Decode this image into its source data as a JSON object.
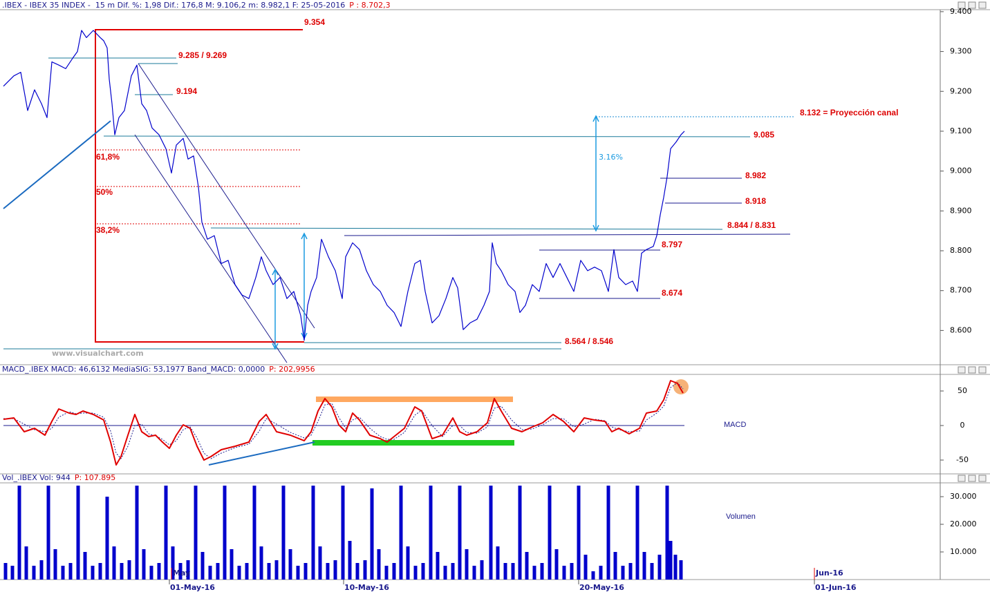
{
  "chart_data": [
    {
      "type": "line",
      "title": ".IBEX - IBEX 35 INDEX -  15 m Dif. %: 1,98 Dif.: 176,8 M: 9.106,2 m: 8.982,1 F: 25-05-2016",
      "title_value": "P : 8.702,3",
      "color": "#0000cc",
      "xlim": [
        0,
        1360
      ],
      "x": [
        5,
        20,
        30,
        40,
        50,
        60,
        68,
        75,
        85,
        95,
        105,
        112,
        118,
        125,
        135,
        145,
        150,
        155,
        158,
        162,
        166,
        172,
        180,
        190,
        198,
        205,
        212,
        220,
        230,
        240,
        248,
        255,
        265,
        272,
        280,
        287,
        292,
        300,
        310,
        320,
        330,
        340,
        350,
        360,
        370,
        378,
        385,
        395,
        405,
        415,
        425,
        435,
        440,
        445,
        450,
        458,
        465,
        475,
        485,
        495,
        500,
        510,
        520,
        530,
        540,
        550,
        560,
        570,
        580,
        590,
        600,
        608,
        615,
        625,
        635,
        645,
        655,
        662,
        670,
        680,
        690,
        700,
        708,
        712,
        718,
        725,
        735,
        745,
        752,
        760,
        770,
        780,
        790,
        800,
        810,
        820,
        830,
        840,
        850,
        860,
        870,
        880,
        888,
        895,
        905,
        915,
        922,
        928,
        935,
        945,
        950,
        955,
        960,
        965,
        970,
        978,
        985,
        990
      ],
      "values": [
        9213,
        9239,
        9248,
        9152,
        9204,
        9169,
        9134,
        9274,
        9266,
        9257,
        9283,
        9300,
        9353,
        9335,
        9353,
        9335,
        9327,
        9309,
        9231,
        9169,
        9091,
        9134,
        9152,
        9239,
        9266,
        9169,
        9152,
        9108,
        9091,
        9056,
        8995,
        9065,
        9082,
        9030,
        9038,
        8960,
        8872,
        8829,
        8838,
        8768,
        8776,
        8715,
        8689,
        8680,
        8733,
        8785,
        8750,
        8715,
        8733,
        8680,
        8698,
        8637,
        8575,
        8663,
        8698,
        8733,
        8829,
        8785,
        8750,
        8680,
        8785,
        8820,
        8803,
        8750,
        8715,
        8698,
        8663,
        8645,
        8610,
        8698,
        8768,
        8776,
        8698,
        8619,
        8637,
        8680,
        8733,
        8707,
        8602,
        8619,
        8628,
        8663,
        8698,
        8820,
        8768,
        8750,
        8715,
        8698,
        8645,
        8663,
        8715,
        8698,
        8768,
        8733,
        8768,
        8733,
        8698,
        8776,
        8750,
        8759,
        8750,
        8698,
        8803,
        8733,
        8715,
        8724,
        8698,
        8794,
        8803,
        8811,
        8838,
        8890,
        8934,
        8986,
        9056,
        9073,
        9091,
        9100
      ],
      "ylim": [
        8514,
        9405
      ],
      "yticks": [
        {
          "value": 9400,
          "label": "9.400"
        },
        {
          "value": 9300,
          "label": "9.300"
        },
        {
          "value": 9200,
          "label": "9.200"
        },
        {
          "value": 9100,
          "label": "9.100"
        },
        {
          "value": 9000,
          "label": "9.000"
        },
        {
          "value": 8900,
          "label": "8.900"
        },
        {
          "value": 8800,
          "label": "8.800"
        },
        {
          "value": 8700,
          "label": "8.700"
        },
        {
          "value": 8600,
          "label": "8.600"
        }
      ],
      "annotations": [
        "9.354",
        "9.285 / 9.269",
        "9.194",
        "61,8%",
        "50%",
        "38,2%",
        "8.132 = Proyección canal",
        "9.085",
        "8.982",
        "8.918",
        "8.844 / 8.831",
        "8.797",
        "8.674",
        "8.564 / 8.546",
        "3.16%"
      ],
      "watermark": "www.visualchart.com"
    },
    {
      "type": "line",
      "title": "MACD_.IBEX MACD: 46,6132 MediaSIG: 53,1977 Band_MACD: 0,0000",
      "title_value": "P: 202,9956",
      "label": "MACD",
      "xlim": [
        0,
        1360
      ],
      "x": [
        5,
        20,
        35,
        50,
        65,
        75,
        85,
        100,
        110,
        120,
        135,
        150,
        160,
        168,
        175,
        185,
        195,
        205,
        215,
        225,
        235,
        245,
        255,
        265,
        275,
        285,
        295,
        305,
        320,
        340,
        360,
        375,
        385,
        400,
        420,
        440,
        450,
        460,
        470,
        480,
        490,
        500,
        510,
        520,
        535,
        550,
        560,
        570,
        585,
        600,
        610,
        625,
        640,
        655,
        665,
        675,
        690,
        705,
        715,
        725,
        740,
        755,
        770,
        785,
        800,
        815,
        830,
        845,
        860,
        875,
        885,
        895,
        910,
        925,
        935,
        950,
        960,
        970,
        980,
        988
      ],
      "series": [
        {
          "color": "#e00000",
          "values": [
            9,
            11,
            -9,
            -4,
            -14,
            6,
            24,
            18,
            16,
            21,
            16,
            8,
            -24,
            -57,
            -45,
            -14,
            16,
            -9,
            -16,
            -14,
            -24,
            -33,
            -14,
            1,
            -4,
            -30,
            -50,
            -45,
            -35,
            -30,
            -24,
            6,
            16,
            -9,
            -14,
            -22,
            -9,
            21,
            39,
            27,
            1,
            -9,
            18,
            8,
            -14,
            -19,
            -24,
            -16,
            -4,
            27,
            21,
            -19,
            -14,
            11,
            -9,
            -14,
            -9,
            4,
            39,
            21,
            -4,
            -9,
            -2,
            4,
            16,
            6,
            -9,
            11,
            8,
            6,
            -9,
            -4,
            -12,
            -4,
            18,
            21,
            37,
            65,
            61,
            47
          ]
        },
        {
          "color": "#1a1a8c",
          "values": [
            10,
            10,
            2,
            -6,
            -9,
            -4,
            12,
            20,
            17,
            18,
            18,
            12,
            -8,
            -40,
            -48,
            -30,
            0,
            2,
            -12,
            -15,
            -20,
            -28,
            -22,
            -6,
            -2,
            -18,
            -40,
            -48,
            -40,
            -32,
            -27,
            -8,
            10,
            2,
            -10,
            -18,
            -14,
            6,
            30,
            32,
            12,
            -4,
            8,
            12,
            -4,
            -16,
            -20,
            -20,
            -10,
            15,
            22,
            0,
            -16,
            0,
            0,
            -10,
            -11,
            -2,
            25,
            28,
            8,
            -6,
            -5,
            1,
            10,
            10,
            -2,
            2,
            9,
            7,
            -2,
            -6,
            -9,
            -8,
            8,
            18,
            28,
            55,
            62,
            53
          ]
        }
      ],
      "ylim": [
        -70,
        74
      ],
      "yticks": [
        50,
        0,
        -50
      ]
    },
    {
      "type": "bar",
      "title": "Vol_.IBEX Vol: 944",
      "title_value": "P: 107.895",
      "label": "Volumen",
      "color": "#0000cc",
      "xlim": [
        0,
        1360
      ],
      "x": [
        8,
        18,
        28,
        38,
        49,
        60,
        70,
        80,
        91,
        102,
        113,
        123,
        134,
        145,
        155,
        165,
        176,
        187,
        198,
        208,
        219,
        230,
        240,
        250,
        261,
        272,
        283,
        293,
        304,
        315,
        325,
        335,
        346,
        357,
        368,
        378,
        389,
        400,
        410,
        420,
        431,
        442,
        453,
        463,
        474,
        485,
        496,
        506,
        517,
        528,
        538,
        548,
        559,
        570,
        580,
        590,
        601,
        612,
        623,
        633,
        644,
        655,
        665,
        675,
        686,
        697,
        710,
        720,
        731,
        742,
        752,
        762,
        773,
        784,
        795,
        805,
        816,
        827,
        837,
        847,
        858,
        869,
        880,
        890,
        901,
        912,
        922,
        932,
        943,
        954,
        965,
        970,
        977,
        985
      ],
      "values": [
        6000,
        5000,
        34000,
        12000,
        5000,
        7000,
        34000,
        11000,
        5000,
        6000,
        34000,
        10000,
        5000,
        6000,
        30000,
        12000,
        6000,
        7000,
        34000,
        11000,
        5000,
        6000,
        34000,
        12000,
        6000,
        7000,
        34000,
        10000,
        5000,
        6000,
        34000,
        11000,
        5000,
        6000,
        34000,
        12000,
        6000,
        7000,
        34000,
        11000,
        5000,
        6000,
        34000,
        12000,
        6000,
        7000,
        34000,
        14000,
        6000,
        7000,
        33000,
        11000,
        5000,
        6000,
        34000,
        12000,
        5000,
        6000,
        34000,
        10000,
        5000,
        6000,
        34000,
        11000,
        5000,
        7000,
        34000,
        12000,
        6000,
        6000,
        34000,
        10000,
        5000,
        6000,
        34000,
        11000,
        5000,
        6000,
        34000,
        9000,
        3000,
        5000,
        34000,
        10000,
        5000,
        6000,
        34000,
        10000,
        6000,
        9000,
        34000,
        14000,
        9000,
        7000
      ],
      "ylim": [
        0,
        35000
      ],
      "yticks": [
        {
          "value": 30000,
          "label": "30.000"
        },
        {
          "value": 20000,
          "label": "20.000"
        },
        {
          "value": 10000,
          "label": "10.000"
        }
      ],
      "xticks": [
        {
          "value": 245,
          "label": "01-May-16"
        },
        {
          "value": 497,
          "label": "10-May-16"
        },
        {
          "value": 837,
          "label": "20-May-16"
        },
        {
          "value": 1178,
          "label": "01-Jun-16"
        }
      ],
      "month_ticks": [
        {
          "value": 248,
          "label": "May"
        },
        {
          "value": 1178,
          "label": "Jun-16"
        }
      ]
    }
  ]
}
